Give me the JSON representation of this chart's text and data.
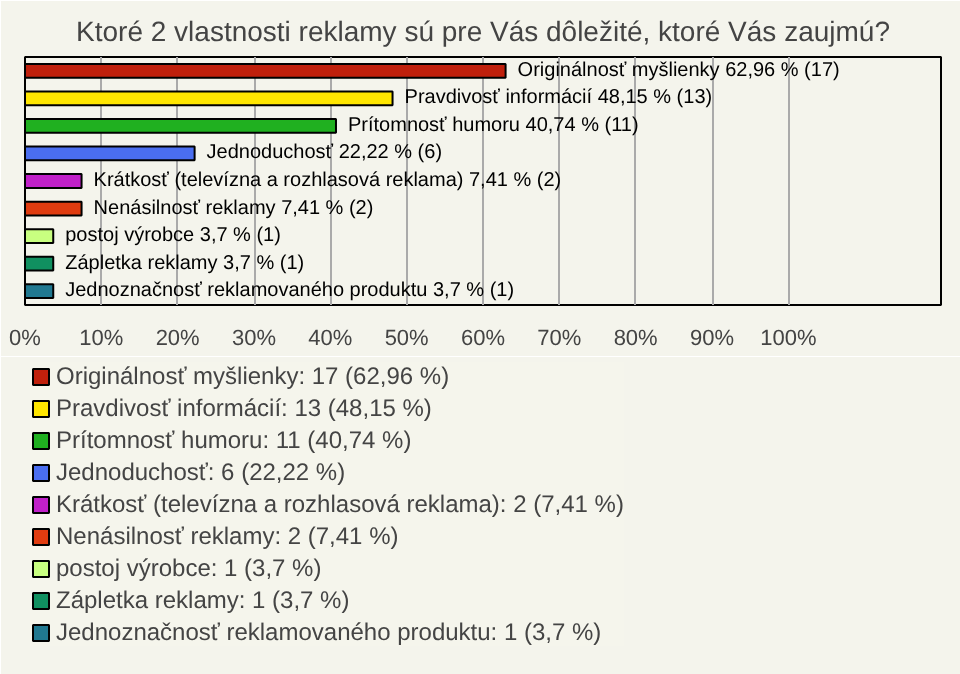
{
  "chart_data": {
    "type": "bar",
    "orientation": "horizontal",
    "title": "Ktoré 2 vlastnosti reklamy sú pre Vás dôležité, ktoré Vás zaujmú?",
    "categories": [
      null,
      null,
      null,
      null,
      null,
      null,
      null,
      null,
      null
    ],
    "xlim": [
      0,
      120
    ],
    "xticks": [
      {
        "value": 0,
        "label": "0%"
      },
      {
        "value": 10,
        "label": "10%"
      },
      {
        "value": 20,
        "label": "20%"
      },
      {
        "value": 30,
        "label": "30%"
      },
      {
        "value": 40,
        "label": "40%"
      },
      {
        "value": 50,
        "label": "50%"
      },
      {
        "value": 60,
        "label": "60%"
      },
      {
        "value": 70,
        "label": "70%"
      },
      {
        "value": 80,
        "label": "80%"
      },
      {
        "value": 90,
        "label": "90%"
      },
      {
        "value": 100,
        "label": "100%"
      }
    ],
    "grid": "x",
    "legend": "bottom",
    "tick_labels": "x",
    "series": [
      {
        "name": "Originálnosť myšlienky: 17 (62,96 %)",
        "color": "#c0200c",
        "values": [
          62.96,
          null,
          null,
          null,
          null,
          null,
          null,
          null,
          null
        ],
        "value_labels": [
          "Originálnosť myšlienky 62,96 % (17)",
          null,
          null,
          null,
          null,
          null,
          null,
          null,
          null
        ]
      },
      {
        "name": "Pravdivosť informácií: 13 (48,15 %)",
        "color": "#ffe600",
        "values": [
          null,
          48.15,
          null,
          null,
          null,
          null,
          null,
          null,
          null
        ],
        "value_labels": [
          null,
          "Pravdivosť informácií 48,15 % (13)",
          null,
          null,
          null,
          null,
          null,
          null,
          null
        ]
      },
      {
        "name": "Prítomnosť humoru: 11 (40,74 %)",
        "color": "#20b020",
        "values": [
          null,
          null,
          40.74,
          null,
          null,
          null,
          null,
          null,
          null
        ],
        "value_labels": [
          null,
          null,
          "Prítomnosť humoru 40,74 % (11)",
          null,
          null,
          null,
          null,
          null,
          null
        ]
      },
      {
        "name": "Jednoduchosť: 6 (22,22 %)",
        "color": "#4a6ef0",
        "values": [
          null,
          null,
          null,
          22.22,
          null,
          null,
          null,
          null,
          null
        ],
        "value_labels": [
          null,
          null,
          null,
          "Jednoduchosť 22,22 % (6)",
          null,
          null,
          null,
          null,
          null
        ]
      },
      {
        "name": "Krátkosť (televízna a rozhlasová reklama): 2 (7,41 %)",
        "color": "#c020c8",
        "values": [
          null,
          null,
          null,
          null,
          7.41,
          null,
          null,
          null,
          null
        ],
        "value_labels": [
          null,
          null,
          null,
          null,
          "Krátkosť (televízna a rozhlasová reklama) 7,41 % (2)",
          null,
          null,
          null,
          null
        ]
      },
      {
        "name": "Nenásilnosť reklamy: 2 (7,41 %)",
        "color": "#e03c10",
        "values": [
          null,
          null,
          null,
          null,
          null,
          7.41,
          null,
          null,
          null
        ],
        "value_labels": [
          null,
          null,
          null,
          null,
          null,
          "Nenásilnosť reklamy 7,41 % (2)",
          null,
          null,
          null
        ]
      },
      {
        "name": "postoj výrobce: 1 (3,7 %)",
        "color": "#c8ff80",
        "values": [
          null,
          null,
          null,
          null,
          null,
          null,
          3.7,
          null,
          null
        ],
        "value_labels": [
          null,
          null,
          null,
          null,
          null,
          null,
          "postoj výrobce 3,7 % (1)",
          null,
          null
        ]
      },
      {
        "name": "Zápletka reklamy: 1 (3,7 %)",
        "color": "#109060",
        "values": [
          null,
          null,
          null,
          null,
          null,
          null,
          null,
          3.7,
          null
        ],
        "value_labels": [
          null,
          null,
          null,
          null,
          null,
          null,
          null,
          "Zápletka reklamy 3,7 % (1)",
          null
        ]
      },
      {
        "name": "Jednoznačnosť reklamovaného produktu: 1 (3,7 %)",
        "color": "#207890",
        "values": [
          null,
          null,
          null,
          null,
          null,
          null,
          null,
          null,
          3.7
        ],
        "value_labels": [
          null,
          null,
          null,
          null,
          null,
          null,
          null,
          null,
          "Jednoznačnosť reklamovaného produktu 3,7 % (1)"
        ]
      }
    ]
  }
}
